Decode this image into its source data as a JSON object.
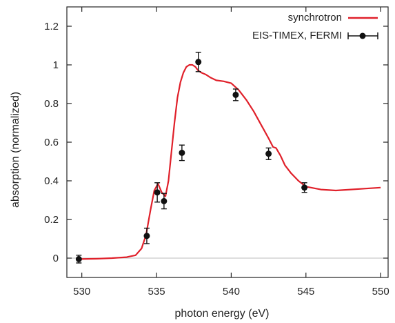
{
  "chart_data": {
    "type": "line",
    "title": "",
    "xlabel": "photon energy (eV)",
    "ylabel": "absorption (normalized)",
    "xlim": [
      529,
      550.5
    ],
    "ylim": [
      -0.1,
      1.3
    ],
    "xticks": [
      530,
      535,
      540,
      545,
      550
    ],
    "yticks": [
      0,
      0.2,
      0.4,
      0.6,
      0.8,
      1,
      1.2
    ],
    "ytick_labels": [
      "0",
      "0.2",
      "0.4",
      "0.6",
      "0.8",
      "1",
      "1.2"
    ],
    "zero_line": true,
    "grid": false,
    "legend_position": "top-right",
    "series": [
      {
        "name": "synchrotron",
        "kind": "line",
        "color": "#e0202a",
        "x": [
          529.8,
          531,
          532,
          533,
          533.6,
          534,
          534.3,
          534.6,
          534.85,
          535.1,
          535.35,
          535.6,
          535.8,
          536.0,
          536.2,
          536.4,
          536.6,
          536.8,
          537.0,
          537.2,
          537.4,
          537.6,
          537.8,
          538.0,
          538.3,
          538.6,
          539.0,
          539.5,
          540.0,
          540.5,
          541.0,
          541.5,
          542.0,
          542.5,
          542.8,
          543.0,
          543.3,
          543.6,
          544.0,
          544.5,
          545.0,
          546.0,
          547.0,
          548.0,
          549.0,
          550.0
        ],
        "y": [
          -0.005,
          -0.003,
          0.0,
          0.005,
          0.015,
          0.05,
          0.12,
          0.25,
          0.35,
          0.385,
          0.34,
          0.32,
          0.4,
          0.55,
          0.7,
          0.83,
          0.91,
          0.96,
          0.99,
          1.0,
          1.0,
          0.99,
          0.97,
          0.96,
          0.95,
          0.935,
          0.92,
          0.915,
          0.905,
          0.87,
          0.82,
          0.76,
          0.69,
          0.62,
          0.575,
          0.57,
          0.53,
          0.48,
          0.44,
          0.4,
          0.37,
          0.355,
          0.35,
          0.355,
          0.36,
          0.365
        ]
      },
      {
        "name": "EIS-TIMEX, FERMI",
        "kind": "scatter",
        "color": "#111111",
        "x": [
          529.8,
          534.35,
          535.05,
          535.5,
          536.7,
          537.8,
          540.3,
          542.5,
          544.9
        ],
        "y": [
          -0.005,
          0.115,
          0.34,
          0.295,
          0.545,
          1.015,
          0.845,
          0.54,
          0.365
        ],
        "yerr": [
          0.02,
          0.04,
          0.05,
          0.04,
          0.04,
          0.05,
          0.03,
          0.03,
          0.025
        ]
      }
    ]
  }
}
